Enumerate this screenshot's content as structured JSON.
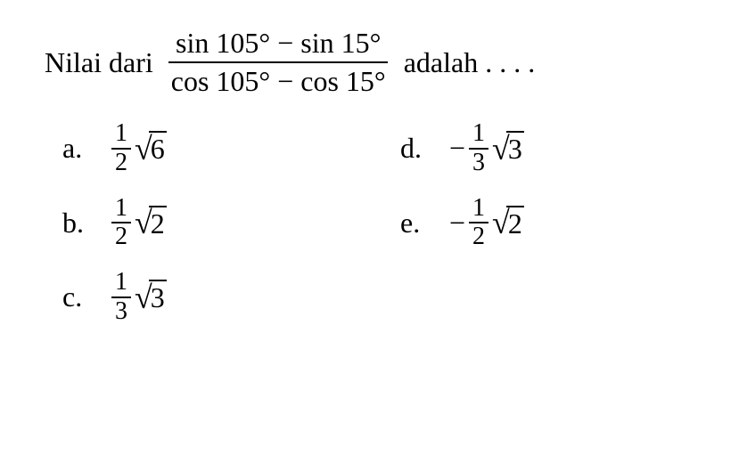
{
  "question": {
    "prefix": "Nilai dari",
    "numerator": "sin 105° − sin 15°",
    "denominator": "cos 105° − cos 15°",
    "suffix": "adalah . . . ."
  },
  "options": {
    "a": {
      "letter": "a.",
      "sign": "",
      "num": "1",
      "den": "2",
      "radical": "6"
    },
    "b": {
      "letter": "b.",
      "sign": "",
      "num": "1",
      "den": "2",
      "radical": "2"
    },
    "c": {
      "letter": "c.",
      "sign": "",
      "num": "1",
      "den": "3",
      "radical": "3"
    },
    "d": {
      "letter": "d.",
      "sign": "−",
      "num": "1",
      "den": "3",
      "radical": "3"
    },
    "e": {
      "letter": "e.",
      "sign": "−",
      "num": "1",
      "den": "2",
      "radical": "2"
    }
  },
  "colors": {
    "background": "#ffffff",
    "text": "#000000"
  }
}
